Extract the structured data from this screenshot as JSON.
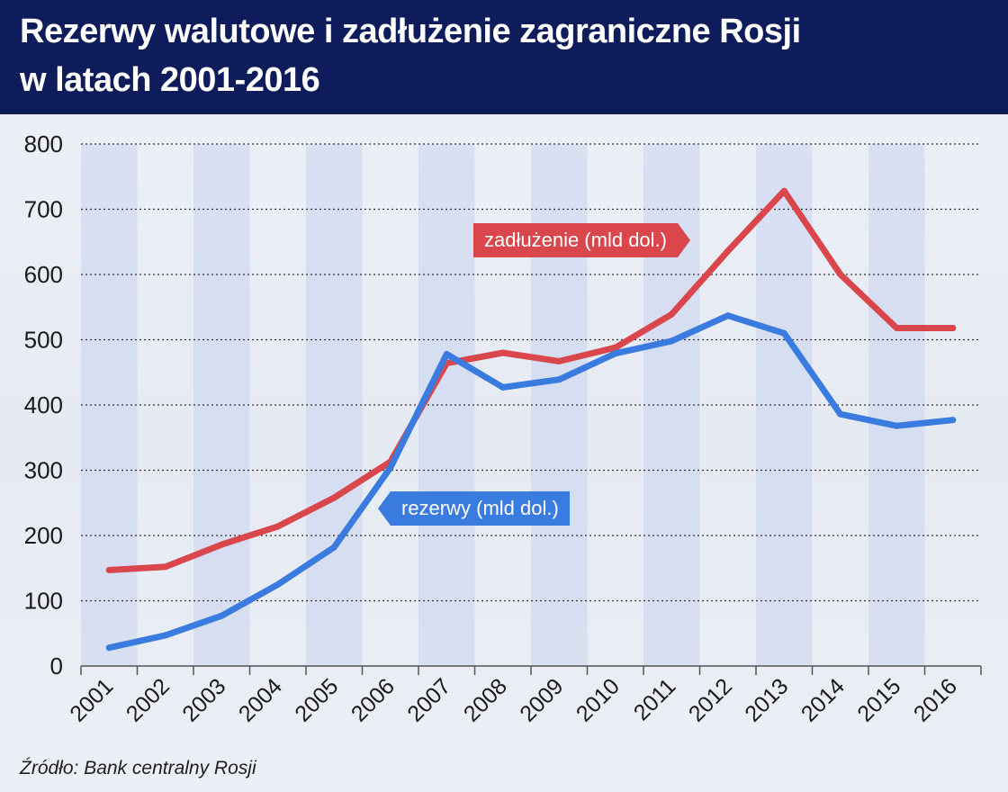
{
  "header": {
    "title_line1": "Rezerwy walutowe i zadłużenie zagraniczne Rosji",
    "title_line2": "w latach 2001-2016"
  },
  "source": "Źródło: Bank centralny Rosji",
  "chart_data": {
    "type": "line",
    "title": "Rezerwy walutowe i zadłużenie zagraniczne Rosji w latach 2001-2016",
    "xlabel": "",
    "ylabel": "",
    "ylim": [
      0,
      800
    ],
    "yticks": [
      0,
      100,
      200,
      300,
      400,
      500,
      600,
      700,
      800
    ],
    "grid": true,
    "categories": [
      "2001",
      "2002",
      "2003",
      "2004",
      "2005",
      "2006",
      "2007",
      "2008",
      "2009",
      "2010",
      "2011",
      "2012",
      "2013",
      "2014",
      "2015",
      "2016"
    ],
    "series": [
      {
        "name": "zadłużenie (mld dol.)",
        "color": "#d9474d",
        "values": [
          147,
          152,
          186,
          214,
          258,
          313,
          464,
          480,
          467,
          488,
          539,
          636,
          728,
          600,
          518,
          518
        ]
      },
      {
        "name": "rezerwy (mld dol.)",
        "color": "#3a7be0",
        "values": [
          28,
          47,
          77,
          125,
          182,
          304,
          478,
          427,
          439,
          479,
          498,
          537,
          510,
          386,
          368,
          377
        ]
      }
    ]
  },
  "colors": {
    "title_bar": "#0e1c5c",
    "stripe": "#c8d4ee"
  }
}
